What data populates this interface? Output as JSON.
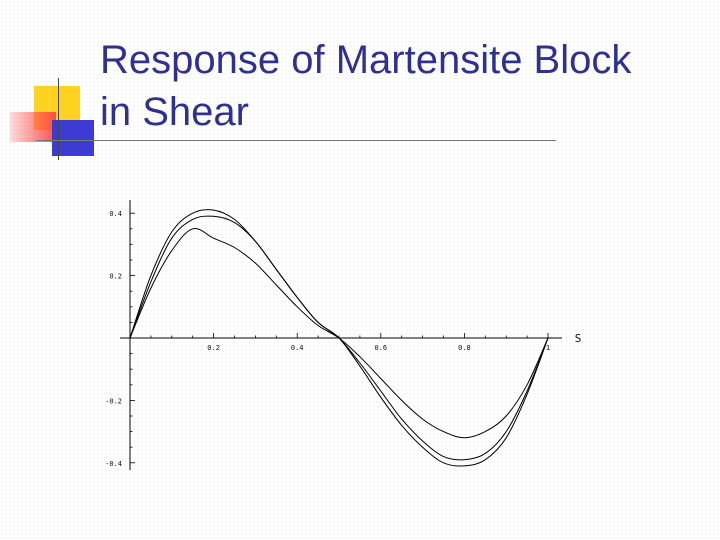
{
  "slide": {
    "title": "Response of Martensite Block\nin Shear"
  },
  "chart_data": {
    "type": "line",
    "title": "",
    "xlabel": "S",
    "ylabel": "",
    "xlim": [
      0,
      1
    ],
    "ylim": [
      -0.41,
      0.42
    ],
    "x_ticks": [
      0.2,
      0.4,
      0.6,
      0.8,
      1
    ],
    "x_tick_labels": [
      "0.2",
      "0.4",
      "0.6",
      "0.8",
      "1"
    ],
    "y_ticks": [
      -0.4,
      -0.2,
      0.2,
      0.4
    ],
    "y_tick_labels": [
      "-0.4",
      "-0.2",
      "0.2",
      "0.4"
    ],
    "grid": false,
    "legend": "none",
    "series": [
      {
        "x": [
          0,
          0.05,
          0.1,
          0.15,
          0.2,
          0.25,
          0.3,
          0.35,
          0.4,
          0.45,
          0.5,
          0.55,
          0.6,
          0.65,
          0.7,
          0.75,
          0.8,
          0.85,
          0.9,
          0.95,
          1
        ],
        "y": [
          0,
          0.16,
          0.28,
          0.35,
          0.32,
          0.29,
          0.24,
          0.17,
          0.1,
          0.04,
          0,
          -0.06,
          -0.13,
          -0.2,
          -0.26,
          -0.3,
          -0.32,
          -0.3,
          -0.25,
          -0.15,
          0
        ]
      },
      {
        "x": [
          0,
          0.05,
          0.1,
          0.15,
          0.2,
          0.25,
          0.3,
          0.35,
          0.4,
          0.45,
          0.5,
          0.55,
          0.6,
          0.65,
          0.7,
          0.75,
          0.8,
          0.85,
          0.9,
          0.95,
          1
        ],
        "y": [
          0,
          0.18,
          0.32,
          0.38,
          0.39,
          0.37,
          0.31,
          0.22,
          0.13,
          0.05,
          0,
          -0.08,
          -0.17,
          -0.26,
          -0.33,
          -0.38,
          -0.39,
          -0.37,
          -0.3,
          -0.17,
          0
        ]
      },
      {
        "x": [
          0,
          0.05,
          0.1,
          0.15,
          0.2,
          0.25,
          0.3,
          0.35,
          0.4,
          0.45,
          0.5,
          0.55,
          0.6,
          0.65,
          0.7,
          0.75,
          0.8,
          0.85,
          0.9,
          0.95,
          1
        ],
        "y": [
          0,
          0.2,
          0.34,
          0.4,
          0.41,
          0.38,
          0.31,
          0.22,
          0.13,
          0.05,
          0,
          -0.09,
          -0.19,
          -0.28,
          -0.35,
          -0.4,
          -0.41,
          -0.39,
          -0.32,
          -0.18,
          0
        ]
      }
    ],
    "colors": {
      "line": "#000000",
      "title": "#2e3192"
    }
  }
}
